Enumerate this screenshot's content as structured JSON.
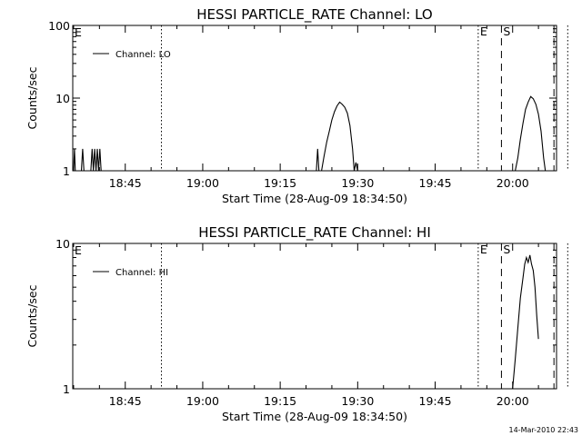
{
  "footer_timestamp": "14-Mar-2010 22:43",
  "chart_data": [
    {
      "type": "line",
      "title": "HESSI PARTICLE_RATE Channel: LO",
      "xlabel": "Start Time (28-Aug-09 18:34:50)",
      "ylabel": "Counts/sec",
      "xscale": "time",
      "yscale": "log",
      "xlim": [
        "18:34:50",
        "20:08:30"
      ],
      "ylim": [
        1,
        100
      ],
      "x_ticks": [
        "18:45",
        "19:00",
        "19:15",
        "19:30",
        "19:45",
        "20:00"
      ],
      "y_ticks": [
        "1",
        "10",
        "100"
      ],
      "legend": "top-left",
      "series": [
        {
          "name": "Channel: LO",
          "color": "#000000",
          "points": [
            [
              "18:35:00",
              1
            ],
            [
              "18:35:10",
              2
            ],
            [
              "18:35:20",
              1
            ],
            [
              "18:35:40",
              1
            ],
            [
              "18:36:30",
              1
            ],
            [
              "18:36:45",
              2
            ],
            [
              "18:37:00",
              1
            ],
            [
              "18:37:30",
              1
            ],
            [
              "18:38:20",
              1
            ],
            [
              "18:38:35",
              2
            ],
            [
              "18:38:50",
              1
            ],
            [
              "18:39:05",
              2
            ],
            [
              "18:39:20",
              1
            ],
            [
              "18:39:35",
              2
            ],
            [
              "18:39:50",
              1
            ],
            [
              "18:40:05",
              2
            ],
            [
              "18:40:20",
              1
            ],
            [
              "18:41:00",
              1
            ],
            [
              "18:45:00",
              1
            ],
            [
              "19:00:00",
              1
            ],
            [
              "19:15:00",
              1
            ],
            [
              "19:22:00",
              1
            ],
            [
              "19:22:15",
              2
            ],
            [
              "19:22:30",
              1
            ],
            [
              "19:23:00",
              1
            ],
            [
              "19:23:30",
              1.6
            ],
            [
              "19:24:00",
              2.5
            ],
            [
              "19:24:30",
              3.5
            ],
            [
              "19:25:00",
              5
            ],
            [
              "19:25:30",
              6.5
            ],
            [
              "19:26:00",
              7.8
            ],
            [
              "19:26:30",
              8.8
            ],
            [
              "19:27:00",
              8.2
            ],
            [
              "19:27:30",
              7.5
            ],
            [
              "19:28:00",
              6.2
            ],
            [
              "19:28:30",
              4.2
            ],
            [
              "19:29:00",
              2
            ],
            [
              "19:29:20",
              1
            ],
            [
              "19:29:40",
              1.3
            ],
            [
              "19:30:00",
              1
            ],
            [
              "19:45:00",
              1
            ],
            [
              "20:00:30",
              1
            ],
            [
              "20:01:00",
              1.5
            ],
            [
              "20:01:30",
              2.7
            ],
            [
              "20:02:00",
              4.5
            ],
            [
              "20:02:30",
              7
            ],
            [
              "20:03:00",
              8.8
            ],
            [
              "20:03:30",
              10.5
            ],
            [
              "20:04:00",
              9.8
            ],
            [
              "20:04:30",
              8.2
            ],
            [
              "20:05:00",
              6
            ],
            [
              "20:05:30",
              3.5
            ],
            [
              "20:06:00",
              1.5
            ],
            [
              "20:06:20",
              1
            ]
          ]
        }
      ],
      "vertical_lines": [
        {
          "x": "18:52:00",
          "style": "dotted"
        },
        {
          "x": "19:53:20",
          "style": "dotted",
          "label": "E"
        },
        {
          "x": "19:57:50",
          "style": "dashed",
          "label": "S"
        },
        {
          "x": "20:08:00",
          "style": "dashed"
        },
        {
          "x": "20:10:40",
          "style": "dotted"
        }
      ],
      "corner_label": "E"
    },
    {
      "type": "line",
      "title": "HESSI PARTICLE_RATE Channel: HI",
      "xlabel": "Start Time (28-Aug-09 18:34:50)",
      "ylabel": "Counts/sec",
      "xscale": "time",
      "yscale": "log",
      "xlim": [
        "18:34:50",
        "20:08:30"
      ],
      "ylim": [
        1,
        10
      ],
      "x_ticks": [
        "18:45",
        "19:00",
        "19:15",
        "19:30",
        "19:45",
        "20:00"
      ],
      "y_ticks": [
        "1",
        "10"
      ],
      "legend": "top-left",
      "series": [
        {
          "name": "Channel: HI",
          "color": "#000000",
          "points": [
            [
              "20:00:00",
              1
            ],
            [
              "20:00:30",
              1.6
            ],
            [
              "20:01:00",
              2.6
            ],
            [
              "20:01:30",
              4.2
            ],
            [
              "20:02:00",
              5.8
            ],
            [
              "20:02:20",
              7.2
            ],
            [
              "20:02:40",
              8
            ],
            [
              "20:03:00",
              7.4
            ],
            [
              "20:03:20",
              8.3
            ],
            [
              "20:03:40",
              7.2
            ],
            [
              "20:04:00",
              6.5
            ],
            [
              "20:04:20",
              5
            ],
            [
              "20:04:40",
              3.2
            ],
            [
              "20:05:00",
              2.2
            ]
          ]
        }
      ],
      "vertical_lines": [
        {
          "x": "18:52:00",
          "style": "dotted"
        },
        {
          "x": "19:53:20",
          "style": "dotted",
          "label": "E"
        },
        {
          "x": "19:57:50",
          "style": "dashed",
          "label": "S"
        },
        {
          "x": "20:08:00",
          "style": "dashed"
        },
        {
          "x": "20:10:40",
          "style": "dotted"
        }
      ],
      "corner_label": "E"
    }
  ]
}
